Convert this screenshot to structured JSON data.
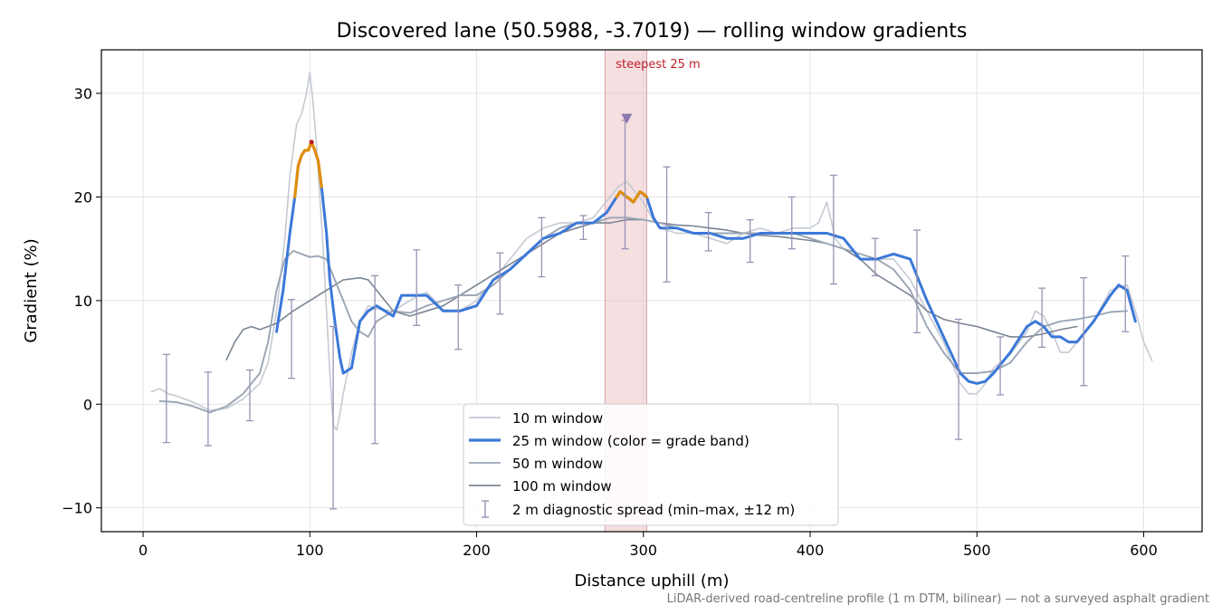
{
  "chart_data": {
    "type": "line",
    "title": "Discovered lane (50.5988, -3.7019) — rolling window gradients",
    "xlabel": "Distance uphill (m)",
    "ylabel": "Gradient (%)",
    "xlim": [
      -25,
      635
    ],
    "ylim": [
      -12.3,
      34.2
    ],
    "x_ticks": [
      0,
      100,
      200,
      300,
      400,
      500,
      600
    ],
    "y_ticks": [
      -10,
      0,
      10,
      20,
      30
    ],
    "x_tick_labels": [
      "0",
      "100",
      "200",
      "300",
      "400",
      "500",
      "600"
    ],
    "y_tick_labels": [
      "−10",
      "0",
      "10",
      "20",
      "30"
    ],
    "grid": true,
    "legend_position": "lower-center",
    "footnote": "LiDAR-derived road-centreline profile (1 m DTM, bilinear) — not a surveyed asphalt gradient",
    "highlight": {
      "label": "steepest 25 m",
      "x_start": 277,
      "x_end": 302,
      "marker_x": 290,
      "marker_y": 27.5
    },
    "colors": {
      "w10": "#c5cad3",
      "w25_base": "#3b78d8",
      "w25_steep": "#e08e0b",
      "w25_peak": "#c0202a",
      "w50": "#9aa5b4",
      "w100": "#7b8593",
      "errbar": "#9893b5",
      "highlight": "#e9b7bd",
      "highlight_text": "#c0202a",
      "marker": "#8b79b0"
    },
    "legend": [
      {
        "label": "10 m window",
        "key": "w10"
      },
      {
        "label": "25 m window (color = grade band)",
        "key": "w25"
      },
      {
        "label": "50 m window",
        "key": "w50"
      },
      {
        "label": "100 m window",
        "key": "w100"
      },
      {
        "label": "2 m diagnostic spread (min–max, ±12 m)",
        "key": "errbar"
      }
    ],
    "series": [
      {
        "key": "w10",
        "x": [
          5,
          10,
          15,
          20,
          30,
          40,
          50,
          60,
          70,
          75,
          80,
          85,
          88,
          92,
          95,
          98,
          100,
          102,
          104,
          106,
          108,
          110,
          112,
          114,
          116,
          118,
          120,
          125,
          130,
          135,
          140,
          150,
          160,
          165,
          170,
          175,
          180,
          190,
          200,
          210,
          220,
          230,
          240,
          250,
          260,
          270,
          280,
          285,
          290,
          295,
          300,
          305,
          310,
          320,
          330,
          340,
          350,
          360,
          370,
          380,
          390,
          400,
          405,
          410,
          415,
          420,
          430,
          440,
          450,
          460,
          470,
          480,
          490,
          495,
          500,
          505,
          510,
          520,
          530,
          535,
          540,
          545,
          550,
          555,
          560,
          570,
          580,
          590,
          595,
          600,
          605
        ],
        "y": [
          1.2,
          1.5,
          1.0,
          0.8,
          0.2,
          -0.6,
          -0.4,
          0.5,
          2,
          4,
          9,
          16,
          22,
          27,
          28,
          30,
          32,
          29,
          25,
          20,
          15,
          9,
          3,
          -2,
          -2.5,
          -1,
          1,
          5,
          8,
          9.5,
          9.2,
          9,
          10,
          10.5,
          10.8,
          10,
          9,
          9,
          10,
          12,
          14,
          16,
          17,
          17.5,
          17.5,
          18,
          20,
          21,
          21.5,
          20.5,
          19.5,
          18,
          17,
          16.5,
          16.5,
          16,
          15.5,
          16.5,
          17,
          16.5,
          17,
          17,
          17.5,
          19.5,
          16,
          15,
          14,
          14,
          14,
          12,
          9,
          6,
          2,
          1,
          1,
          2,
          3.5,
          4.8,
          7,
          9,
          8.5,
          7,
          5,
          5,
          6,
          8,
          11,
          11.5,
          9,
          6,
          4.2
        ]
      },
      {
        "key": "w25",
        "x": [
          80,
          84,
          88,
          91,
          93,
          95,
          97,
          99,
          101,
          103,
          105,
          107,
          110,
          112,
          115,
          118,
          120,
          125,
          130,
          135,
          140,
          145,
          150,
          155,
          160,
          170,
          180,
          190,
          200,
          210,
          220,
          230,
          240,
          250,
          260,
          270,
          278,
          282,
          286,
          290,
          294,
          298,
          302,
          306,
          310,
          320,
          330,
          340,
          350,
          360,
          370,
          380,
          390,
          400,
          410,
          420,
          430,
          440,
          450,
          460,
          470,
          480,
          490,
          495,
          500,
          505,
          510,
          520,
          530,
          535,
          540,
          545,
          550,
          555,
          560,
          570,
          580,
          585,
          590,
          595
        ],
        "y": [
          7,
          11,
          16.5,
          20,
          23,
          24,
          24.5,
          24.5,
          25.3,
          24.5,
          23.5,
          21,
          16.5,
          12,
          8,
          4.5,
          3,
          3.5,
          8,
          9,
          9.5,
          9,
          8.5,
          10.5,
          10.5,
          10.5,
          9,
          9,
          9.5,
          12,
          13,
          14.5,
          16,
          16.5,
          17.5,
          17.5,
          18.5,
          19.5,
          20.5,
          20,
          19.5,
          20.5,
          20,
          18,
          17,
          17,
          16.5,
          16.5,
          16,
          16,
          16.5,
          16.5,
          16.5,
          16.5,
          16.5,
          16,
          14,
          14,
          14.5,
          14,
          10,
          6.5,
          3,
          2.2,
          2,
          2.2,
          3,
          5,
          7.5,
          8,
          7.5,
          6.5,
          6.5,
          6,
          6,
          8,
          10.5,
          11.5,
          11,
          8
        ]
      },
      {
        "key": "w50",
        "x": [
          10,
          20,
          30,
          40,
          50,
          60,
          70,
          75,
          80,
          85,
          90,
          95,
          100,
          105,
          110,
          115,
          120,
          125,
          130,
          135,
          140,
          150,
          160,
          170,
          180,
          190,
          200,
          210,
          220,
          230,
          240,
          250,
          260,
          270,
          280,
          290,
          300,
          310,
          320,
          330,
          340,
          350,
          360,
          370,
          380,
          390,
          400,
          410,
          420,
          430,
          440,
          450,
          460,
          470,
          480,
          490,
          500,
          510,
          520,
          530,
          540,
          550,
          560,
          570,
          580,
          590
        ],
        "y": [
          0.3,
          0.2,
          -0.2,
          -0.8,
          -0.2,
          1,
          3,
          6,
          11,
          14,
          14.8,
          14.5,
          14.2,
          14.3,
          14,
          12,
          10,
          8,
          7,
          6.5,
          8,
          9,
          8.8,
          9.5,
          10,
          10.5,
          10.5,
          11.5,
          13,
          14.5,
          16,
          17,
          17.5,
          17.5,
          18,
          18,
          17.8,
          17.5,
          17,
          16.5,
          16.5,
          16.5,
          16.5,
          16.5,
          16.5,
          16.5,
          16,
          15.5,
          15,
          14.5,
          14,
          13,
          11,
          7.5,
          5,
          3,
          3,
          3.2,
          4,
          6,
          7.5,
          8,
          8.2,
          8.5,
          8.9,
          9
        ]
      },
      {
        "key": "w100",
        "x": [
          50,
          55,
          60,
          65,
          70,
          80,
          90,
          100,
          110,
          120,
          130,
          135,
          140,
          145,
          150,
          160,
          170,
          180,
          190,
          200,
          210,
          220,
          230,
          240,
          250,
          260,
          270,
          280,
          290,
          300,
          310,
          320,
          330,
          340,
          350,
          360,
          370,
          380,
          390,
          400,
          410,
          420,
          430,
          440,
          450,
          460,
          470,
          480,
          490,
          500,
          510,
          520,
          530,
          540,
          550,
          560
        ],
        "y": [
          4.3,
          6,
          7.2,
          7.5,
          7.2,
          7.8,
          9,
          10,
          11,
          12,
          12.2,
          12,
          11,
          10,
          9,
          8.5,
          9,
          9.5,
          10.5,
          11.5,
          12.5,
          13.5,
          14.5,
          15.5,
          16.5,
          17,
          17.5,
          17.5,
          17.8,
          17.8,
          17.5,
          17.3,
          17.2,
          17,
          16.8,
          16.5,
          16.3,
          16.2,
          16,
          15.8,
          15.5,
          15,
          14,
          12.5,
          11.5,
          10.5,
          9,
          8.2,
          7.8,
          7.5,
          7,
          6.5,
          6.5,
          6.8,
          7.2,
          7.5
        ]
      }
    ],
    "steep_segment": {
      "x": [
        91,
        93,
        95,
        97,
        99,
        101,
        103,
        105,
        107
      ],
      "y": [
        20,
        23,
        24,
        24.5,
        24.5,
        25.3,
        24.5,
        23.5,
        21
      ]
    },
    "steep_segment_2": {
      "x": [
        284,
        286,
        288,
        290,
        292,
        294,
        296,
        298,
        300,
        302
      ],
      "y": [
        20,
        20.5,
        20.3,
        20,
        19.8,
        19.5,
        20,
        20.5,
        20.3,
        20
      ]
    },
    "error_bars": [
      {
        "x": 14,
        "lo": -3.7,
        "hi": 4.8
      },
      {
        "x": 39,
        "lo": -4.0,
        "hi": 3.1
      },
      {
        "x": 64,
        "lo": -1.6,
        "hi": 3.3
      },
      {
        "x": 89,
        "lo": 2.5,
        "hi": 10.1
      },
      {
        "x": 114,
        "lo": -10.1,
        "hi": 7.5
      },
      {
        "x": 139,
        "lo": -3.8,
        "hi": 12.4
      },
      {
        "x": 164,
        "lo": 7.6,
        "hi": 14.9
      },
      {
        "x": 189,
        "lo": 5.3,
        "hi": 11.5
      },
      {
        "x": 214,
        "lo": 8.7,
        "hi": 14.6
      },
      {
        "x": 239,
        "lo": 12.3,
        "hi": 18.0
      },
      {
        "x": 264,
        "lo": 15.9,
        "hi": 18.2
      },
      {
        "x": 289,
        "lo": 15.0,
        "hi": 27.4
      },
      {
        "x": 314,
        "lo": 11.8,
        "hi": 22.9
      },
      {
        "x": 339,
        "lo": 14.8,
        "hi": 18.5
      },
      {
        "x": 364,
        "lo": 13.7,
        "hi": 17.8
      },
      {
        "x": 389,
        "lo": 15.0,
        "hi": 20.0
      },
      {
        "x": 414,
        "lo": 11.6,
        "hi": 22.1
      },
      {
        "x": 439,
        "lo": 12.4,
        "hi": 16.0
      },
      {
        "x": 464,
        "lo": 6.9,
        "hi": 16.8
      },
      {
        "x": 489,
        "lo": -3.4,
        "hi": 8.2
      },
      {
        "x": 514,
        "lo": 0.9,
        "hi": 6.5
      },
      {
        "x": 539,
        "lo": 5.5,
        "hi": 11.2
      },
      {
        "x": 564,
        "lo": 1.8,
        "hi": 12.2
      },
      {
        "x": 589,
        "lo": 7.0,
        "hi": 14.3
      }
    ]
  }
}
